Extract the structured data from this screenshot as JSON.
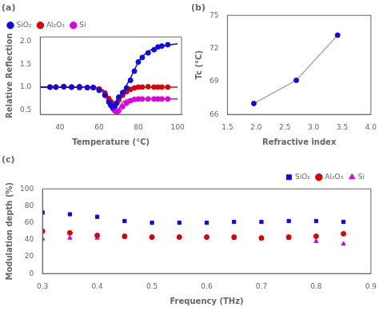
{
  "chart_data": [
    {
      "type": "scatter",
      "title": "(a)",
      "xlabel": "Temperature (°C)",
      "ylabel": "Relative Reflection",
      "xlim": [
        30,
        102
      ],
      "ylim": [
        0.4,
        2.1
      ],
      "xticks": [
        40,
        60,
        80,
        100
      ],
      "yticks": [
        0.5,
        {
          "value": 1.0,
          "label": "1.0"
        },
        1.5,
        {
          "value": 2.0,
          "label": "2.0"
        }
      ],
      "grid": false,
      "legend": "upper left",
      "series": [
        {
          "name": "SiO₂",
          "type": "scatter",
          "marker": "circle",
          "color": "#0a0aee",
          "x": [
            35,
            38,
            42,
            46,
            50,
            54,
            57,
            60,
            63,
            65,
            66,
            67,
            68,
            69,
            70,
            72,
            74,
            76,
            78,
            80,
            82,
            85,
            88,
            90,
            92,
            95
          ],
          "values": [
            1.0,
            1.0,
            1.01,
            1.0,
            1.01,
            0.99,
            0.99,
            0.93,
            0.82,
            0.67,
            0.6,
            0.56,
            0.58,
            0.65,
            0.78,
            0.88,
            0.98,
            1.15,
            1.35,
            1.55,
            1.65,
            1.75,
            1.82,
            1.88,
            1.9,
            1.93
          ]
        },
        {
          "name": "Al₂O₃",
          "type": "scatter",
          "marker": "circle",
          "color": "#dd0000",
          "x": [
            35,
            38,
            42,
            46,
            50,
            54,
            57,
            60,
            63,
            65,
            66,
            67,
            68,
            69,
            70,
            72,
            74,
            76,
            78,
            80,
            82,
            85,
            88,
            90,
            92,
            95
          ],
          "values": [
            1.0,
            1.0,
            1.01,
            1.0,
            0.99,
            0.99,
            0.99,
            0.96,
            0.87,
            0.75,
            0.68,
            0.63,
            0.62,
            0.65,
            0.72,
            0.82,
            0.9,
            0.95,
            0.98,
            1.0,
            1.0,
            1.01,
            1.0,
            1.0,
            1.0,
            1.0
          ]
        },
        {
          "name": "Si",
          "type": "scatter",
          "marker": "circle",
          "color": "#dd00dd",
          "x": [
            35,
            38,
            42,
            46,
            50,
            54,
            57,
            60,
            63,
            65,
            66,
            67,
            68,
            69,
            70,
            72,
            74,
            76,
            78,
            80,
            82,
            85,
            88,
            90,
            92,
            95
          ],
          "values": [
            1.0,
            1.0,
            1.01,
            1.0,
            0.99,
            0.99,
            0.99,
            0.95,
            0.83,
            0.69,
            0.6,
            0.53,
            0.48,
            0.45,
            0.48,
            0.57,
            0.65,
            0.7,
            0.73,
            0.74,
            0.74,
            0.74,
            0.74,
            0.74,
            0.74,
            0.74
          ]
        },
        {
          "type": "line",
          "color": "#0a0aee",
          "x": [
            30,
            35,
            40,
            45,
            50,
            55,
            58,
            60,
            62,
            63,
            64,
            65,
            66,
            67,
            68,
            69,
            70,
            71,
            72,
            74,
            76,
            78,
            80,
            82,
            85,
            88,
            90,
            95,
            100
          ],
          "values": [
            1.0,
            1.0,
            1.0,
            1.0,
            1.0,
            1.0,
            0.99,
            0.97,
            0.9,
            0.84,
            0.77,
            0.67,
            0.59,
            0.55,
            0.55,
            0.6,
            0.68,
            0.78,
            0.88,
            1.04,
            1.2,
            1.38,
            1.55,
            1.67,
            1.78,
            1.85,
            1.88,
            1.92,
            1.95
          ]
        },
        {
          "type": "line",
          "color": "#dd0000",
          "x": [
            30,
            35,
            40,
            45,
            50,
            55,
            58,
            60,
            62,
            63,
            64,
            65,
            66,
            67,
            68,
            69,
            70,
            71,
            72,
            74,
            76,
            78,
            80,
            82,
            85,
            88,
            90,
            95,
            100
          ],
          "values": [
            1.0,
            1.0,
            1.0,
            1.0,
            1.0,
            1.0,
            0.99,
            0.98,
            0.94,
            0.9,
            0.84,
            0.76,
            0.68,
            0.63,
            0.61,
            0.63,
            0.68,
            0.75,
            0.82,
            0.9,
            0.95,
            0.98,
            1.0,
            1.0,
            1.0,
            1.0,
            1.0,
            1.0,
            1.0
          ]
        },
        {
          "type": "line",
          "color": "#dd00dd",
          "x": [
            30,
            35,
            40,
            45,
            50,
            55,
            58,
            60,
            62,
            63,
            64,
            65,
            66,
            67,
            68,
            69,
            70,
            71,
            72,
            74,
            76,
            78,
            80,
            82,
            85,
            88,
            90,
            95,
            100
          ],
          "values": [
            1.0,
            1.0,
            1.0,
            1.0,
            1.0,
            1.0,
            0.99,
            0.97,
            0.9,
            0.83,
            0.74,
            0.63,
            0.53,
            0.47,
            0.45,
            0.46,
            0.52,
            0.6,
            0.67,
            0.72,
            0.74,
            0.74,
            0.74,
            0.74,
            0.74,
            0.74,
            0.74,
            0.74,
            0.74
          ]
        }
      ]
    },
    {
      "type": "scatter",
      "title": "(b)",
      "xlabel": "Refractive index",
      "ylabel": "Tc (°C)",
      "xlim": [
        1.5,
        4.0
      ],
      "ylim": [
        66,
        75
      ],
      "xticks": [
        1.5,
        {
          "value": 2.0,
          "label": "2.0"
        },
        2.5,
        {
          "value": 3.0,
          "label": "3.0"
        },
        3.5,
        {
          "value": 4.0,
          "label": "4.0"
        }
      ],
      "yticks": [
        66,
        69,
        72,
        75
      ],
      "grid": false,
      "series": [
        {
          "type": "line",
          "color": "#aaaaaa",
          "x": [
            1.96,
            2.7,
            3.42
          ],
          "values": [
            67.0,
            69.1,
            73.2
          ]
        },
        {
          "type": "scatter",
          "marker": "circle",
          "color": "#0a0aee",
          "x": [
            1.96,
            2.7,
            3.42
          ],
          "values": [
            67.0,
            69.1,
            73.2
          ]
        }
      ]
    },
    {
      "type": "scatter",
      "title": "(c)",
      "xlabel": "Frequency (THz)",
      "ylabel": "Modulation depth (%)",
      "xlim": [
        0.3,
        0.9
      ],
      "ylim": [
        0,
        100
      ],
      "xticks": [
        0.3,
        0.4,
        0.5,
        0.6,
        0.7,
        0.8,
        0.9
      ],
      "yticks": [
        0,
        20,
        40,
        60,
        80,
        100
      ],
      "grid": false,
      "legend": "upper right",
      "series": [
        {
          "name": "SiO₂",
          "type": "scatter",
          "marker": "square",
          "color": "#0a0aee",
          "x": [
            0.3,
            0.35,
            0.4,
            0.45,
            0.5,
            0.55,
            0.6,
            0.65,
            0.7,
            0.75,
            0.8,
            0.85
          ],
          "values": [
            72,
            70,
            67,
            62,
            60,
            60,
            60,
            61,
            61,
            62,
            62,
            61
          ]
        },
        {
          "name": "Al₂O₃",
          "type": "scatter",
          "marker": "circle",
          "color": "#dd0000",
          "x": [
            0.3,
            0.35,
            0.4,
            0.45,
            0.5,
            0.55,
            0.6,
            0.65,
            0.7,
            0.75,
            0.8,
            0.85
          ],
          "values": [
            50,
            48,
            45,
            44,
            43,
            43,
            43,
            43,
            42,
            43,
            44,
            47
          ]
        },
        {
          "name": "Si",
          "type": "scatter",
          "marker": "triangle",
          "color": "#dd00dd",
          "x": [
            0.3,
            0.35,
            0.4,
            0.45,
            0.5,
            0.55,
            0.6,
            0.65,
            0.7,
            0.75,
            0.8,
            0.85
          ],
          "values": [
            41,
            42,
            42,
            43,
            43,
            43,
            43,
            42,
            42,
            42,
            38,
            35
          ]
        }
      ]
    }
  ]
}
